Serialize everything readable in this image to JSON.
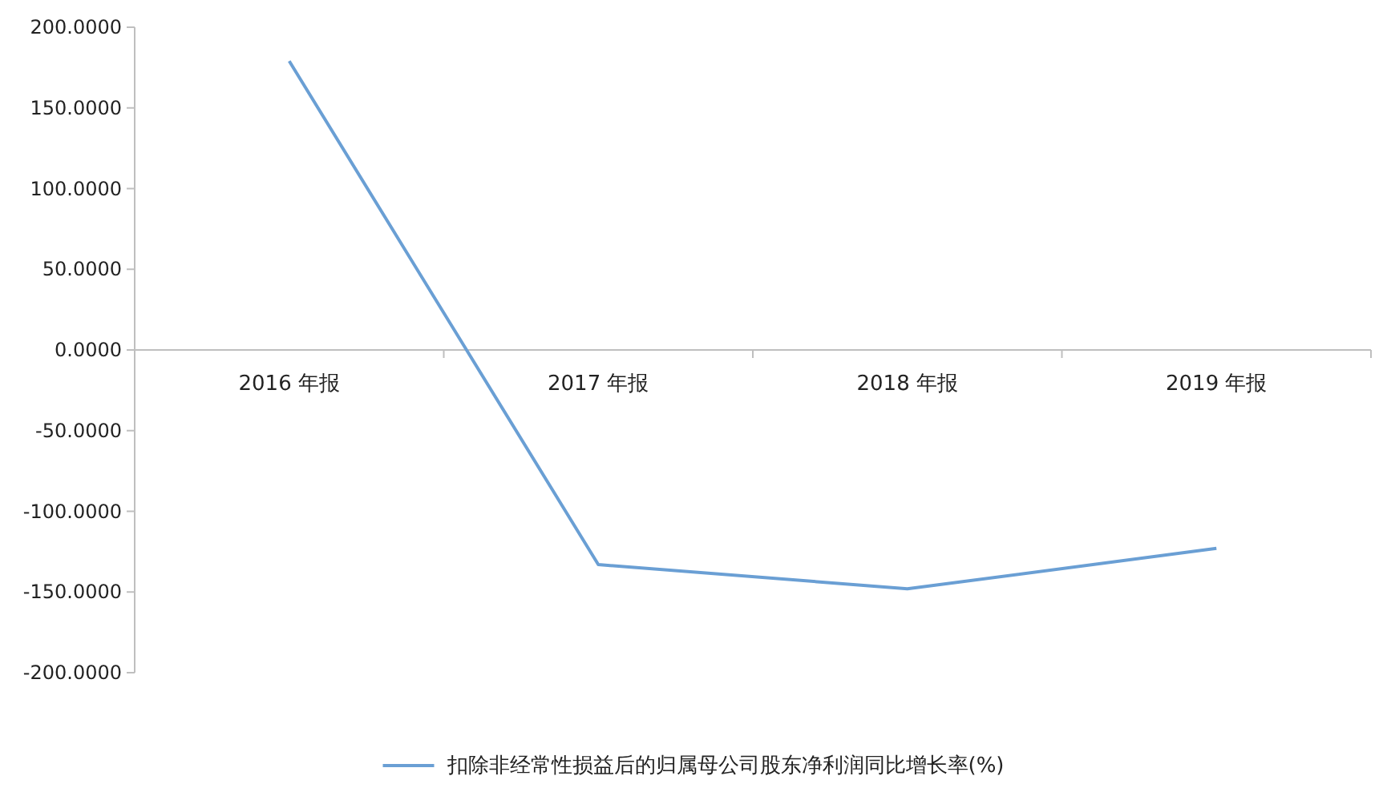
{
  "chart_data": {
    "type": "line",
    "categories": [
      "2016 年报",
      "2017 年报",
      "2018 年报",
      "2019 年报"
    ],
    "series": [
      {
        "name": "扣除非经常性损益后的归属母公司股东净利润同比增长率(%)",
        "color": "#6a9fd4",
        "values": [
          179,
          -133,
          -148,
          -123
        ]
      }
    ],
    "ylim": [
      -200,
      200
    ],
    "yticks": [
      {
        "value": -200,
        "label": "-200.0000"
      },
      {
        "value": -150,
        "label": "-150.0000"
      },
      {
        "value": -100,
        "label": "-100.0000"
      },
      {
        "value": -50,
        "label": "-50.0000"
      },
      {
        "value": 0,
        "label": "0.0000"
      },
      {
        "value": 50,
        "label": "50.0000"
      },
      {
        "value": 100,
        "label": "100.0000"
      },
      {
        "value": 150,
        "label": "150.0000"
      },
      {
        "value": 200,
        "label": "200.0000"
      }
    ],
    "legend": "bottom",
    "grid": false
  }
}
